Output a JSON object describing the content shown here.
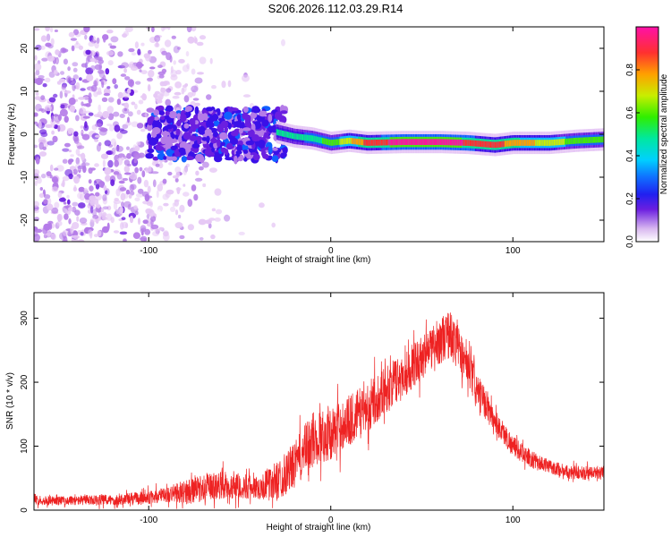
{
  "title": "S206.2026.112.03.29.R14",
  "chart_data": [
    {
      "type": "heatmap",
      "title": "S206.2026.112.03.29.R14",
      "xlabel": "Height of straight line (km)",
      "ylabel": "Frequency (Hz)",
      "xlim": [
        -163,
        150
      ],
      "ylim": [
        -25,
        25
      ],
      "xticks": [
        -100,
        0,
        100
      ],
      "yticks": [
        -20,
        -10,
        0,
        10,
        20
      ],
      "colorbar": {
        "label": "Normalized spectral amplitude",
        "range": [
          0,
          1
        ],
        "ticks": [
          0.0,
          0.2,
          0.4,
          0.6,
          0.8
        ],
        "tick_labels": [
          "0.0",
          "0.2",
          "0.4",
          "0.6",
          "0.8"
        ]
      },
      "ridge": {
        "frequency_hz": [
          [
            -50,
            0.0
          ],
          [
            -40,
            -1.0
          ],
          [
            -30,
            0.5
          ],
          [
            -20,
            -0.5
          ],
          [
            -10,
            -1.0
          ],
          [
            0,
            -2.0
          ],
          [
            10,
            -1.5
          ],
          [
            20,
            -2.0
          ],
          [
            40,
            -1.8
          ],
          [
            60,
            -1.8
          ],
          [
            75,
            -2.0
          ],
          [
            90,
            -2.5
          ],
          [
            100,
            -2.0
          ],
          [
            120,
            -2.0
          ],
          [
            135,
            -1.5
          ],
          [
            150,
            -1.2
          ]
        ],
        "amplitude": [
          [
            -100,
            0.25
          ],
          [
            -80,
            0.3
          ],
          [
            -60,
            0.35
          ],
          [
            -40,
            0.45
          ],
          [
            -30,
            0.55
          ],
          [
            -20,
            0.55
          ],
          [
            -10,
            0.6
          ],
          [
            0,
            0.65
          ],
          [
            20,
            0.9
          ],
          [
            40,
            1.0
          ],
          [
            60,
            1.0
          ],
          [
            75,
            0.95
          ],
          [
            90,
            0.9
          ],
          [
            110,
            0.8
          ],
          [
            130,
            0.7
          ],
          [
            150,
            0.65
          ]
        ]
      }
    },
    {
      "type": "line",
      "xlabel": "Height of straight line (km)",
      "ylabel": "SNR (10 * v/v)",
      "xlim": [
        -163,
        150
      ],
      "ylim": [
        0,
        340
      ],
      "xticks": [
        -100,
        0,
        100
      ],
      "yticks": [
        0,
        100,
        200,
        300
      ],
      "series": [
        {
          "name": "SNR",
          "color": "#ee2222",
          "envelope_x": [
            -163,
            -140,
            -120,
            -100,
            -90,
            -80,
            -60,
            -40,
            -30,
            -20,
            -10,
            0,
            10,
            20,
            30,
            40,
            50,
            60,
            65,
            70,
            80,
            90,
            100,
            110,
            120,
            130,
            140,
            150
          ],
          "envelope_mean": [
            15,
            15,
            16,
            20,
            24,
            28,
            40,
            35,
            45,
            70,
            110,
            120,
            140,
            160,
            190,
            210,
            240,
            265,
            275,
            255,
            190,
            140,
            100,
            80,
            68,
            60,
            58,
            60
          ],
          "envelope_spread": [
            8,
            8,
            10,
            12,
            14,
            22,
            25,
            20,
            35,
            40,
            50,
            45,
            45,
            45,
            40,
            40,
            38,
            40,
            45,
            40,
            30,
            22,
            18,
            15,
            12,
            12,
            12,
            12
          ]
        }
      ]
    }
  ],
  "colors": {
    "series_line": "#ee2222",
    "colormap": [
      "#ffffff",
      "#e6c8f5",
      "#b47be8",
      "#6b1fe0",
      "#3a10e8",
      "#1060ff",
      "#00c8ff",
      "#00e890",
      "#44ee00",
      "#ccee00",
      "#ffa000",
      "#ff3030",
      "#ff10a0"
    ]
  }
}
